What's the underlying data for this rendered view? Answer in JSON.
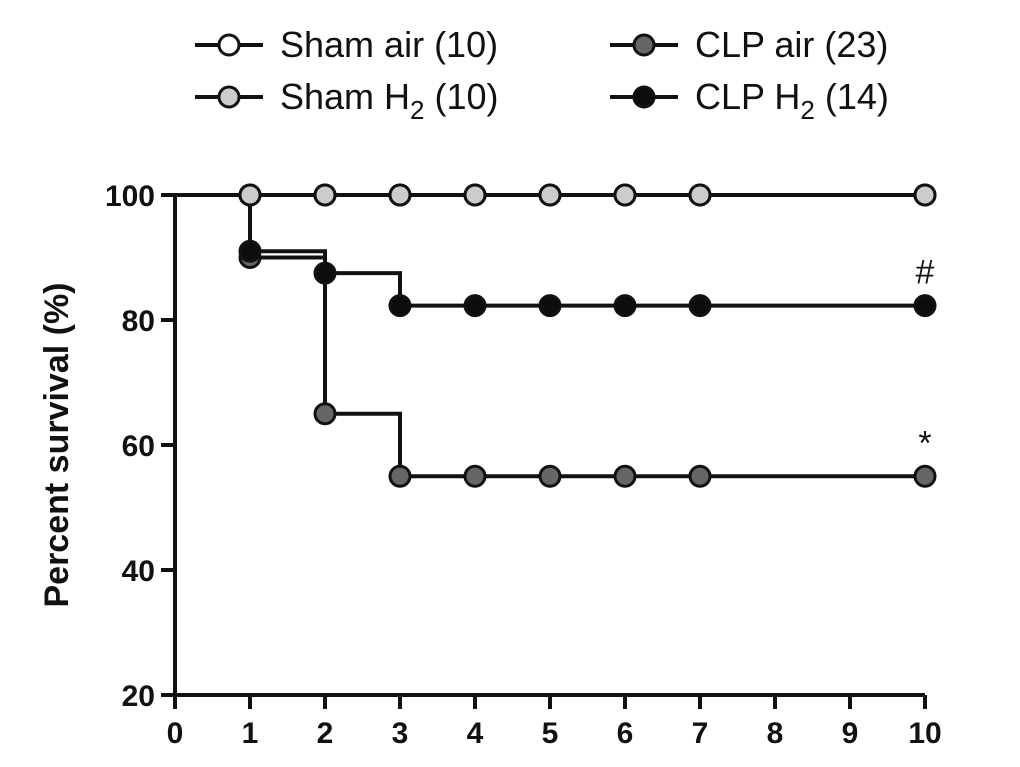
{
  "chart_data": {
    "type": "line",
    "title": "",
    "xlabel": "",
    "ylabel": "Percent survival  (%)",
    "xlim": [
      0,
      10
    ],
    "ylim": [
      20,
      100
    ],
    "x_ticks": [
      0,
      1,
      2,
      3,
      4,
      5,
      6,
      7,
      8,
      9,
      10
    ],
    "y_ticks": [
      20,
      40,
      60,
      80,
      100
    ],
    "grid": false,
    "legend_position": "top",
    "series": [
      {
        "name": "Sham air",
        "name_subscript": "",
        "count_label": "(10)",
        "fill": "#ffffff",
        "step": false,
        "x": [
          1,
          2,
          3,
          4,
          5,
          6,
          7,
          10
        ],
        "values": [
          100,
          100,
          100,
          100,
          100,
          100,
          100,
          100
        ]
      },
      {
        "name": "Sham H",
        "name_subscript": "2",
        "count_label": "(10)",
        "fill": "#cccccc",
        "step": false,
        "x": [
          1,
          2,
          3,
          4,
          5,
          6,
          7,
          10
        ],
        "values": [
          100,
          100,
          100,
          100,
          100,
          100,
          100,
          100
        ]
      },
      {
        "name": "CLP air",
        "name_subscript": "",
        "count_label": "(23)",
        "fill": "#666666",
        "step": true,
        "x": [
          1,
          2,
          3,
          4,
          5,
          6,
          7,
          10
        ],
        "values": [
          90,
          65,
          55,
          55,
          55,
          55,
          55,
          55
        ]
      },
      {
        "name": "CLP H",
        "name_subscript": "2",
        "count_label": "(14)",
        "fill": "#0d0d0d",
        "step": true,
        "x": [
          1,
          2,
          3,
          4,
          5,
          6,
          7,
          10
        ],
        "values": [
          91,
          87.5,
          82.3,
          82.3,
          82.3,
          82.3,
          82.3,
          82.3
        ]
      }
    ],
    "annotations": [
      {
        "text": "#",
        "x": 10,
        "y": 82.3
      },
      {
        "text": "*",
        "x": 10,
        "y": 55
      }
    ]
  }
}
